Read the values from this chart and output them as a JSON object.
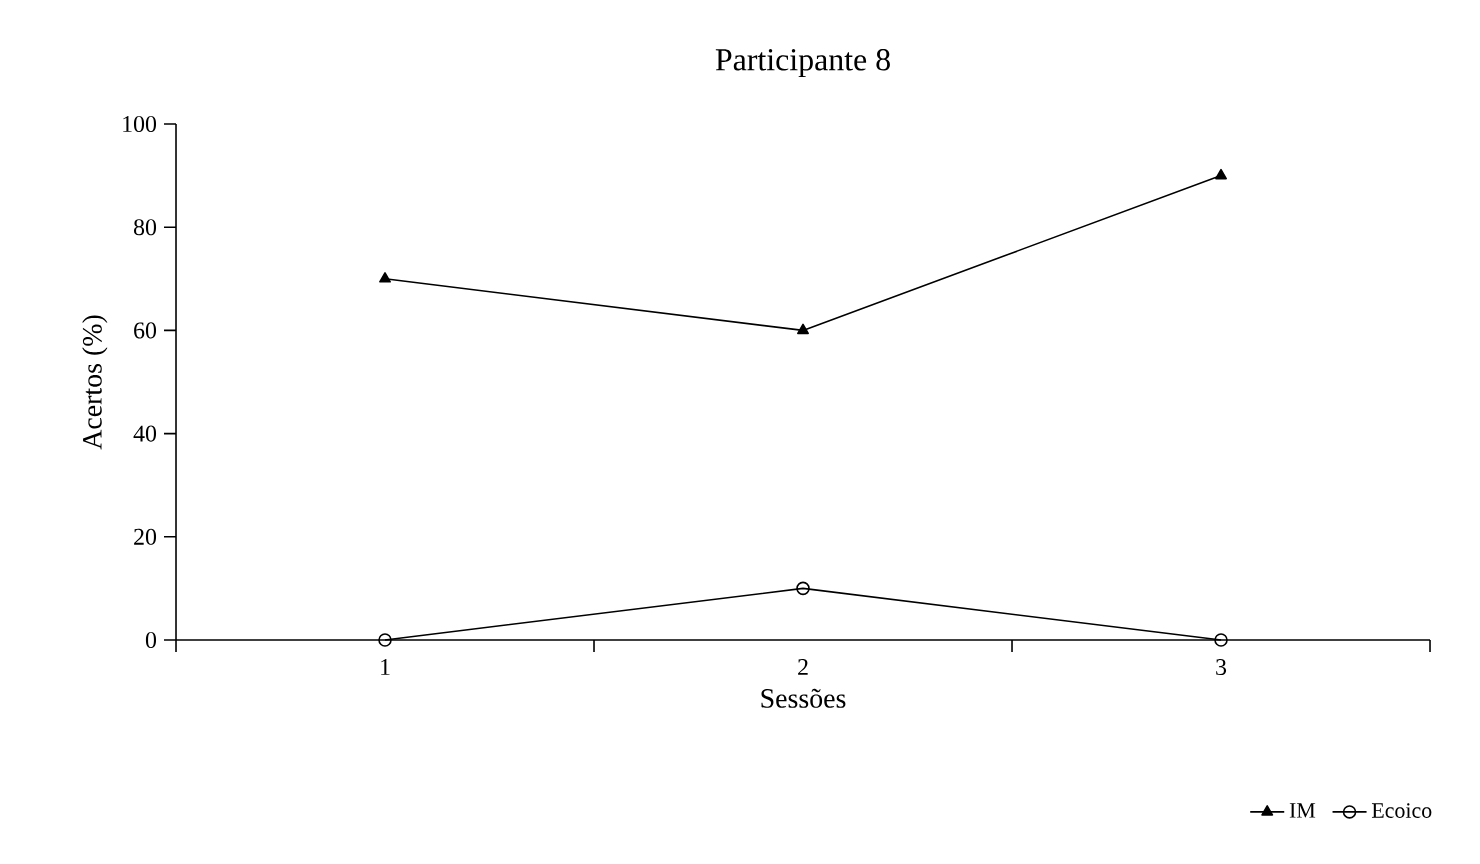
{
  "chart_data": {
    "type": "line",
    "title": "Participante 8",
    "xlabel": "Sessões",
    "ylabel": "Acertos (%)",
    "categories": [
      "1",
      "2",
      "3"
    ],
    "series": [
      {
        "name": "IM",
        "color": "#000000",
        "marker": "triangle",
        "values": [
          70,
          60,
          90
        ]
      },
      {
        "name": "Ecoico",
        "color": "#000000",
        "marker": "circle",
        "values": [
          0,
          10,
          0
        ]
      }
    ],
    "ylim": [
      0,
      100
    ],
    "yticks": [
      0,
      20,
      40,
      60,
      80,
      100
    ],
    "grid": false,
    "legend": "bottom right",
    "line_style": "solid"
  }
}
